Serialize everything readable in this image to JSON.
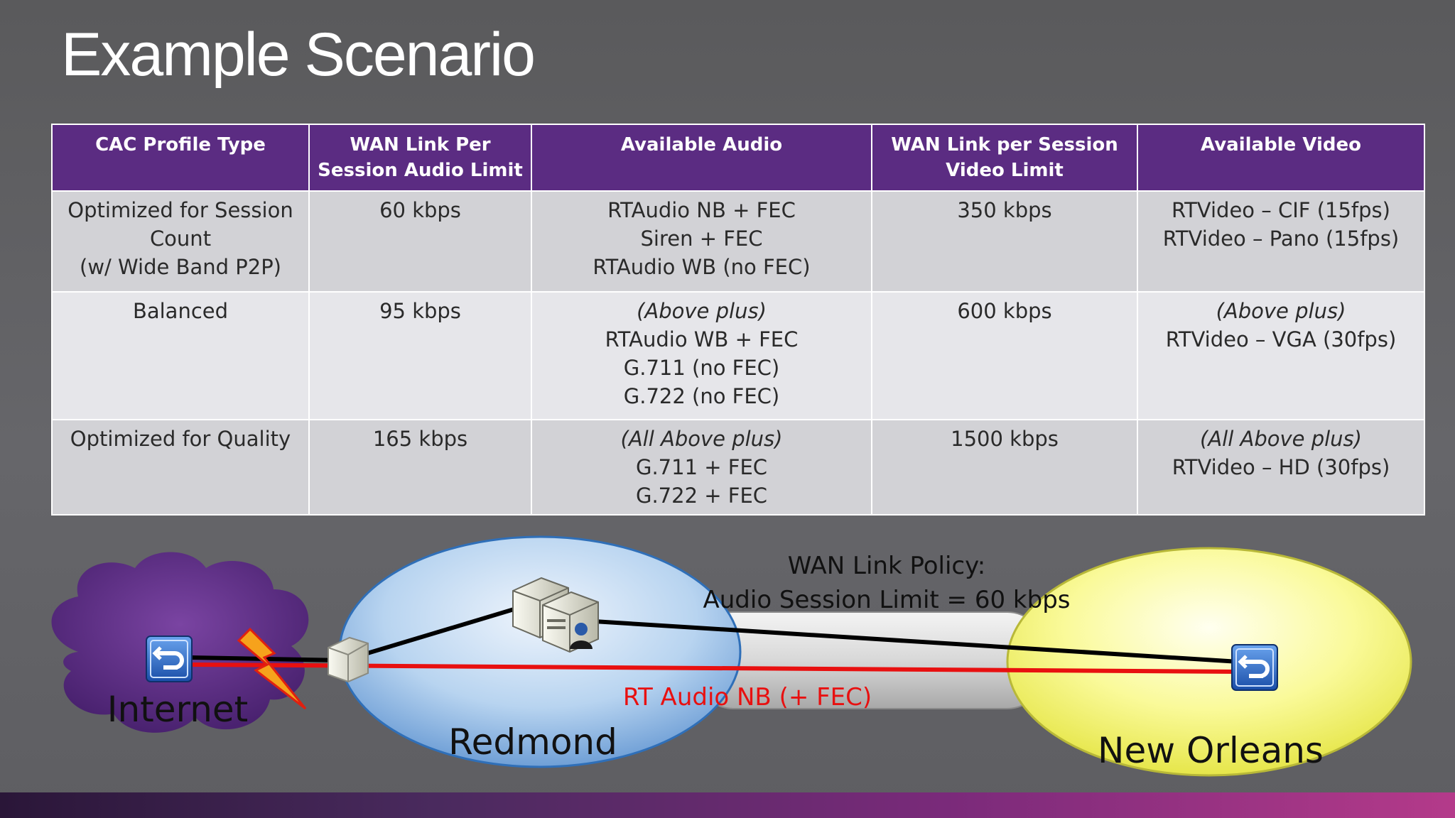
{
  "title": "Example Scenario",
  "table": {
    "headers": [
      [
        "CAC Profile Type"
      ],
      [
        "WAN Link  Per",
        "Session Audio Limit"
      ],
      [
        "Available Audio"
      ],
      [
        "WAN Link per Session",
        "Video Limit"
      ],
      [
        "Available Video"
      ]
    ],
    "rows": [
      {
        "profile": [
          "Optimized for Session",
          "Count",
          "(w/ Wide Band P2P)"
        ],
        "audio_limit": "60 kbps",
        "audio_intro": "",
        "audio": [
          "RTAudio  NB + FEC",
          "Siren + FEC",
          "RTAudio  WB (no FEC)"
        ],
        "video_limit": "350 kbps",
        "video_intro": "",
        "video": [
          "RTVideo – CIF (15fps)",
          "RTVideo  – Pano (15fps)"
        ]
      },
      {
        "profile": [
          "Balanced"
        ],
        "audio_limit": "95 kbps",
        "audio_intro": "(Above plus)",
        "audio": [
          "RTAudio  WB + FEC",
          "G.711 (no FEC)",
          "G.722 (no FEC)"
        ],
        "video_limit": "600 kbps",
        "video_intro": "(Above plus)",
        "video": [
          "RTVideo  – VGA (30fps)"
        ]
      },
      {
        "profile": [
          "Optimized  for Quality"
        ],
        "audio_limit": "165 kbps",
        "audio_intro": "(All Above plus)",
        "audio": [
          "G.711 + FEC",
          "G.722 + FEC"
        ],
        "video_limit": "1500 kbps",
        "video_intro": "(All Above plus)",
        "video": [
          "RTVideo  – HD (30fps)"
        ]
      }
    ]
  },
  "diagram": {
    "internet_label": "Internet",
    "redmond_label": "Redmond",
    "new_orleans_label": "New Orleans",
    "policy_line1": "WAN Link Policy:",
    "policy_line2": "Audio Session Limit = 60 kbps",
    "audio_flow_label": "RT Audio NB (+ FEC)",
    "colors": {
      "cloud": "#5a2a80",
      "redmond": "#a8c8ec",
      "new_orleans": "#f2f26a",
      "audio_line": "#e81010",
      "signal_line": "#000000",
      "header": "#5b2c82"
    }
  }
}
